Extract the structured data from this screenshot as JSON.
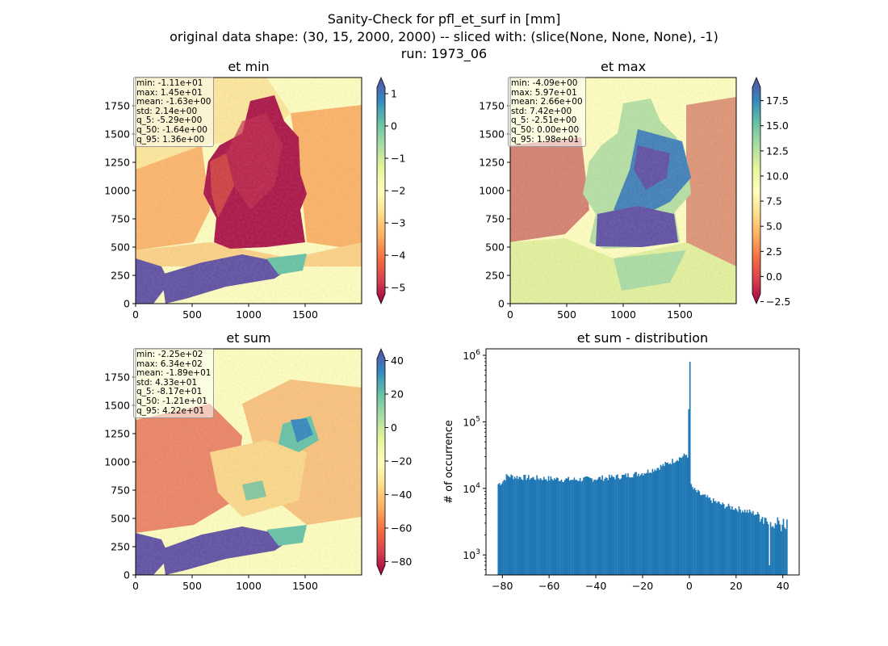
{
  "figure": {
    "title_lines": [
      "Sanity-Check for pfl_et_surf in [mm]",
      "original data shape: (30, 15, 2000, 2000) -- sliced with: (slice(None, None, None), -1)",
      "run: 1973_06"
    ]
  },
  "colors": {
    "hist_bar": "#1f77b4",
    "spectral": [
      "#9e0142",
      "#d53e4f",
      "#f46d43",
      "#fdae61",
      "#fee08b",
      "#ffffbf",
      "#e6f598",
      "#abdda4",
      "#66c2a5",
      "#3288bd",
      "#5e4fa2"
    ]
  },
  "chart_data": [
    {
      "type": "heatmap",
      "title": "et min",
      "x_ticks": [
        0,
        500,
        1000,
        1500
      ],
      "y_ticks": [
        0,
        250,
        500,
        750,
        1000,
        1250,
        1500,
        1750
      ],
      "xlim": [
        0,
        2000
      ],
      "ylim": [
        0,
        2000
      ],
      "colormap": "Spectral",
      "colorbar": {
        "vmin": -5.5,
        "vmax": 1.5,
        "ticks": [
          1,
          0,
          -1,
          -2,
          -3,
          -4,
          -5
        ],
        "tick_labels": [
          "1",
          "0",
          "−1",
          "−2",
          "−3",
          "−4",
          "−5"
        ]
      },
      "stats": [
        "min: -1.11e+01",
        "max: 1.45e+01",
        "mean: -1.63e+00",
        "std: 2.14e+00",
        "q_5: -5.29e+00",
        "q_50: -1.64e+00",
        "q_95: 1.36e+00"
      ]
    },
    {
      "type": "heatmap",
      "title": "et max",
      "x_ticks": [
        0,
        500,
        1000,
        1500
      ],
      "y_ticks": [
        0,
        250,
        500,
        750,
        1000,
        1250,
        1500,
        1750
      ],
      "xlim": [
        0,
        2000
      ],
      "ylim": [
        0,
        2000
      ],
      "colormap": "Spectral",
      "colorbar": {
        "vmin": -2.7,
        "vmax": 19.8,
        "ticks": [
          17.5,
          15.0,
          12.5,
          10.0,
          7.5,
          5.0,
          2.5,
          0.0,
          -2.5
        ],
        "tick_labels": [
          "17.5",
          "15.0",
          "12.5",
          "10.0",
          "7.5",
          "5.0",
          "2.5",
          "0.0",
          "−2.5"
        ]
      },
      "stats": [
        "min: -4.09e+00",
        "max: 5.97e+01",
        "mean: 2.66e+00",
        "std: 7.42e+00",
        "q_5: -2.51e+00",
        "q_50: 0.00e+00",
        "q_95: 1.98e+01"
      ]
    },
    {
      "type": "heatmap",
      "title": "et sum",
      "x_ticks": [
        0,
        500,
        1000,
        1500
      ],
      "y_ticks": [
        0,
        250,
        500,
        750,
        1000,
        1250,
        1500,
        1750
      ],
      "xlim": [
        0,
        2000
      ],
      "ylim": [
        0,
        2000
      ],
      "colormap": "Spectral",
      "colorbar": {
        "vmin": -88,
        "vmax": 47,
        "ticks": [
          40,
          20,
          0,
          -20,
          -40,
          -60,
          -80
        ],
        "tick_labels": [
          "40",
          "20",
          "0",
          "−20",
          "−40",
          "−60",
          "−80"
        ]
      },
      "stats": [
        "min: -2.25e+02",
        "max: 6.34e+02",
        "mean: -1.89e+01",
        "std: 4.33e+01",
        "q_5: -8.17e+01",
        "q_50: -1.21e+01",
        "q_95: 4.22e+01"
      ]
    },
    {
      "type": "bar",
      "title": "et sum - distribution",
      "ylabel": "# of occurrence",
      "y_scale": "log",
      "xlim": [
        -87,
        47
      ],
      "ylim": [
        500,
        1250000
      ],
      "x_ticks": [
        -80,
        -60,
        -40,
        -20,
        0,
        20,
        40
      ],
      "x_tick_labels": [
        "−80",
        "−60",
        "−40",
        "−20",
        "0",
        "20",
        "40"
      ],
      "y_ticks": [
        1000,
        10000,
        100000,
        1000000
      ],
      "y_tick_labels": [
        [
          "10",
          "3"
        ],
        [
          "10",
          "4"
        ],
        [
          "10",
          "5"
        ],
        [
          "10",
          "6"
        ]
      ],
      "bin_width": 0.5,
      "bins_x_start": -82,
      "bins_x_end": 42,
      "counts_desc": "approximate envelope of histogram",
      "envelope": {
        "x": [
          -82,
          -80,
          -78,
          -75,
          -70,
          -60,
          -50,
          -40,
          -30,
          -20,
          -15,
          -10,
          -5,
          -2,
          -1,
          -0.5,
          0,
          0.5,
          2,
          5,
          10,
          15,
          20,
          25,
          30,
          33,
          35,
          38,
          40,
          42
        ],
        "counts": [
          11500,
          12500,
          15500,
          15000,
          14500,
          14000,
          13500,
          14000,
          15000,
          17000,
          19500,
          23000,
          28000,
          31000,
          33000,
          30000,
          800000,
          11000,
          9500,
          8000,
          6500,
          5500,
          5000,
          4500,
          4000,
          3500,
          3000,
          2800,
          2800,
          3000
        ]
      }
    }
  ]
}
